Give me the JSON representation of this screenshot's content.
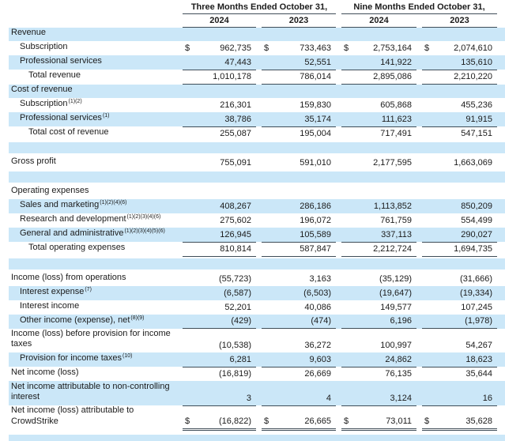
{
  "colors": {
    "row_shade": "#cbe7f8",
    "rule_line": "#3f4d58",
    "text": "#1b1b1b"
  },
  "table": {
    "dollar_sign": "$",
    "groups": [
      {
        "title": "Three Months Ended October 31,",
        "years": [
          "2024",
          "2023"
        ]
      },
      {
        "title": "Nine Months Ended October 31,",
        "years": [
          "2024",
          "2023"
        ]
      }
    ],
    "rows": [
      {
        "type": "section",
        "label": "Revenue",
        "shaded": true
      },
      {
        "type": "data",
        "label": "Subscription",
        "indent": 1,
        "dollar": true,
        "values": [
          "962,735",
          "733,463",
          "2,753,164",
          "2,074,610"
        ]
      },
      {
        "type": "data",
        "label": "Professional services",
        "indent": 1,
        "shaded": true,
        "rule": "bottom",
        "values": [
          "47,443",
          "52,551",
          "141,922",
          "135,610"
        ]
      },
      {
        "type": "data",
        "label": "Total revenue",
        "indent": 2,
        "rule": "bottom",
        "values": [
          "1,010,178",
          "786,014",
          "2,895,086",
          "2,210,220"
        ]
      },
      {
        "type": "section",
        "label": "Cost of revenue",
        "shaded": true
      },
      {
        "type": "data",
        "label": "Subscription",
        "sup": "(1)(2)",
        "indent": 1,
        "values": [
          "216,301",
          "159,830",
          "605,868",
          "455,236"
        ]
      },
      {
        "type": "data",
        "label": "Professional services",
        "sup": "(1)",
        "indent": 1,
        "shaded": true,
        "rule": "bottom",
        "values": [
          "38,786",
          "35,174",
          "111,623",
          "91,915"
        ]
      },
      {
        "type": "data",
        "label": "Total cost of revenue",
        "indent": 2,
        "values": [
          "255,087",
          "195,004",
          "717,491",
          "547,151"
        ]
      },
      {
        "type": "spacer",
        "shaded": true
      },
      {
        "type": "data",
        "label": "Gross profit",
        "indent": 0,
        "values": [
          "755,091",
          "591,010",
          "2,177,595",
          "1,663,069"
        ]
      },
      {
        "type": "spacer",
        "shaded": true
      },
      {
        "type": "section",
        "label": "Operating expenses",
        "shaded": false
      },
      {
        "type": "data",
        "label": "Sales and marketing",
        "sup": "(1)(2)(4)(6)",
        "indent": 1,
        "shaded": true,
        "values": [
          "408,267",
          "286,186",
          "1,113,852",
          "850,209"
        ]
      },
      {
        "type": "data",
        "label": "Research and development",
        "sup": "(1)(2)(3)(4)(6)",
        "indent": 1,
        "values": [
          "275,602",
          "196,072",
          "761,759",
          "554,499"
        ]
      },
      {
        "type": "data",
        "label": "General and administrative",
        "sup": "(1)(2)(3)(4)(5)(6)",
        "indent": 1,
        "shaded": true,
        "rule": "bottom",
        "values": [
          "126,945",
          "105,589",
          "337,113",
          "290,027"
        ]
      },
      {
        "type": "data",
        "label": "Total operating expenses",
        "indent": 2,
        "rule": "bottom",
        "values": [
          "810,814",
          "587,847",
          "2,212,724",
          "1,694,735"
        ]
      },
      {
        "type": "spacer",
        "shaded": true
      },
      {
        "type": "data",
        "label": "Income (loss) from operations",
        "indent": 0,
        "values": [
          "(55,723)",
          "3,163",
          "(35,129)",
          "(31,666)"
        ]
      },
      {
        "type": "data",
        "label": "Interest expense",
        "sup": "(7)",
        "indent": 1,
        "shaded": true,
        "values": [
          "(6,587)",
          "(6,503)",
          "(19,647)",
          "(19,334)"
        ]
      },
      {
        "type": "data",
        "label": "Interest income",
        "indent": 1,
        "values": [
          "52,201",
          "40,086",
          "149,577",
          "107,245"
        ]
      },
      {
        "type": "data",
        "label": "Other income (expense), net",
        "sup": "(8)(9)",
        "indent": 1,
        "shaded": true,
        "rule": "bottom",
        "values": [
          "(429)",
          "(474)",
          "6,196",
          "(1,978)"
        ]
      },
      {
        "type": "data",
        "label": "Income (loss) before provision for income taxes",
        "indent": 0,
        "values": [
          "(10,538)",
          "36,272",
          "100,997",
          "54,267"
        ]
      },
      {
        "type": "data",
        "label": "Provision for income taxes",
        "sup": "(10)",
        "indent": 1,
        "shaded": true,
        "rule": "bottom",
        "values": [
          "6,281",
          "9,603",
          "24,862",
          "18,623"
        ]
      },
      {
        "type": "data",
        "label": "Net income (loss)",
        "indent": 0,
        "values": [
          "(16,819)",
          "26,669",
          "76,135",
          "35,644"
        ]
      },
      {
        "type": "data",
        "label": "Net income attributable to non-controlling interest",
        "indent": 0,
        "shaded": true,
        "tall": true,
        "rule": "bottom",
        "values": [
          "3",
          "4",
          "3,124",
          "16"
        ]
      },
      {
        "type": "data",
        "label": "Net income (loss) attributable to CrowdStrike",
        "indent": 0,
        "dollar": true,
        "rule": "double",
        "values": [
          "(16,822)",
          "26,665",
          "73,011",
          "35,628"
        ]
      },
      {
        "type": "gap"
      },
      {
        "type": "strip",
        "shaded": true
      }
    ]
  }
}
